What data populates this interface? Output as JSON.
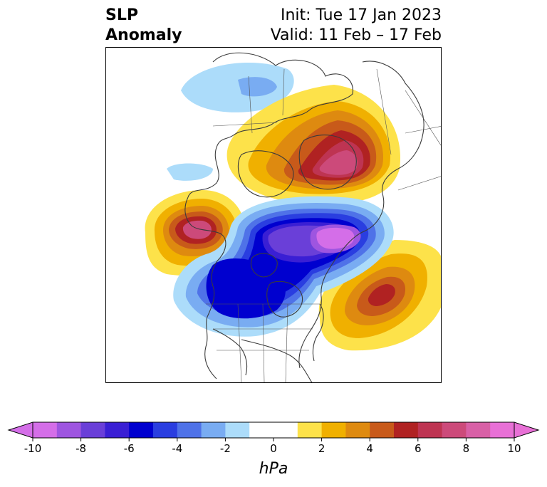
{
  "title": {
    "left_line1": "SLP",
    "left_line2": "Anomaly",
    "right_line1": "Init: Tue 17 Jan 2023",
    "right_line2": "Valid: 11 Feb – 17 Feb"
  },
  "colorbar": {
    "units": "hPa",
    "min": -10,
    "max": 10,
    "step": 1,
    "tick_values": [
      -10,
      -8,
      -6,
      -4,
      -2,
      0,
      2,
      4,
      6,
      8,
      10
    ],
    "tick_labels": [
      "-10",
      "-8",
      "-6",
      "-4",
      "-2",
      "0",
      "2",
      "4",
      "6",
      "8",
      "10"
    ],
    "extend": "both",
    "colors": [
      "#d46ee8",
      "#9e55e0",
      "#6a3fd8",
      "#3a1fd4",
      "#0000cf",
      "#2a3ee0",
      "#4f72e8",
      "#79acf2",
      "#acdcfa",
      "#ffffff",
      "#ffffff",
      "#fde24a",
      "#f0b000",
      "#de8a10",
      "#c85a1a",
      "#b02222",
      "#be3452",
      "#cc4a7a",
      "#d860a6",
      "#e870d6"
    ]
  },
  "map": {
    "features": [
      {
        "name": "positive-anomaly-greenland-arctic",
        "peak_hpa": 9
      },
      {
        "name": "positive-anomaly-alaska",
        "peak_hpa": 8
      },
      {
        "name": "positive-anomaly-north-atlantic",
        "peak_hpa": 6
      },
      {
        "name": "negative-anomaly-canada-arctic",
        "peak_hpa": -10
      },
      {
        "name": "negative-anomaly-western-canada",
        "peak_hpa": -6
      },
      {
        "name": "negative-anomaly-siberia",
        "peak_hpa": -3
      }
    ]
  }
}
